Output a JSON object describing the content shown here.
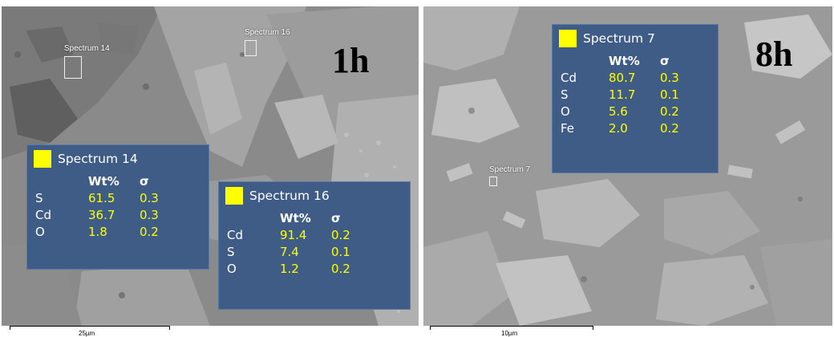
{
  "left_image": {
    "time_label": "1h",
    "scale_label": "25µm",
    "roi_labels": {
      "spectrum14": "Spectrum 14",
      "spectrum16": "Spectrum 16"
    },
    "panels": [
      {
        "title": "Spectrum 14",
        "col_wt": "Wt%",
        "col_sigma": "σ",
        "rows": [
          {
            "el": "S",
            "wt": "61.5",
            "sigma": "0.3"
          },
          {
            "el": "Cd",
            "wt": "36.7",
            "sigma": "0.3"
          },
          {
            "el": "O",
            "wt": "1.8",
            "sigma": "0.2"
          }
        ]
      },
      {
        "title": "Spectrum 16",
        "col_wt": "Wt%",
        "col_sigma": "σ",
        "rows": [
          {
            "el": "Cd",
            "wt": "91.4",
            "sigma": "0.2"
          },
          {
            "el": "S",
            "wt": "7.4",
            "sigma": "0.1"
          },
          {
            "el": "O",
            "wt": "1.2",
            "sigma": "0.2"
          }
        ]
      }
    ]
  },
  "right_image": {
    "time_label": "8h",
    "scale_label": "10µm",
    "roi_labels": {
      "spectrum7": "Spectrum 7"
    },
    "panels": [
      {
        "title": "Spectrum 7",
        "col_wt": "Wt%",
        "col_sigma": "σ",
        "rows": [
          {
            "el": "Cd",
            "wt": "80.7",
            "sigma": "0.3"
          },
          {
            "el": "S",
            "wt": "11.7",
            "sigma": "0.1"
          },
          {
            "el": "O",
            "wt": "5.6",
            "sigma": "0.2"
          },
          {
            "el": "Fe",
            "wt": "2.0",
            "sigma": "0.2"
          }
        ]
      }
    ]
  },
  "colors": {
    "panel_bg": "#3e5c85",
    "value_color": "#ffff00",
    "swatch": "#ffff00"
  }
}
